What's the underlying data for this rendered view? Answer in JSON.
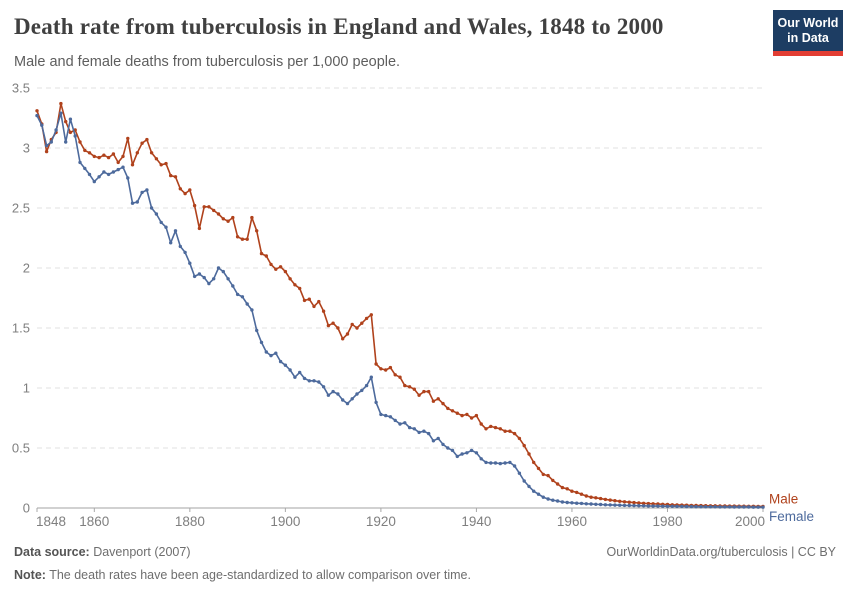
{
  "header": {
    "title": "Death rate from tuberculosis in England and Wales, 1848 to 2000",
    "subtitle": "Male and female deaths from tuberculosis per 1,000 people.",
    "logo": {
      "line1": "Our World",
      "line2": "in Data",
      "bg": "#1d3d63",
      "stripe": "#e23d33"
    }
  },
  "chart_data": {
    "type": "line",
    "title": "Death rate from tuberculosis in England and Wales, 1848 to 2000",
    "subtitle": "Male and female deaths from tuberculosis per 1,000 people.",
    "xlabel": "",
    "ylabel": "",
    "year_start": 1848,
    "year_end": 2000,
    "x_step_years": 1,
    "ylim": [
      0,
      3.5
    ],
    "yticks": [
      0,
      0.5,
      1,
      1.5,
      2,
      2.5,
      3,
      3.5
    ],
    "xticks": [
      1848,
      1860,
      1880,
      1900,
      1920,
      1940,
      1960,
      1980,
      2000
    ],
    "grid": true,
    "grid_style": "dashed",
    "legend_position": "right-end-labels",
    "series": [
      {
        "name": "Male",
        "color": "#b0421c",
        "values": [
          3.31,
          3.2,
          2.97,
          3.07,
          3.13,
          3.37,
          3.22,
          3.13,
          3.15,
          3.05,
          2.98,
          2.96,
          2.93,
          2.92,
          2.94,
          2.92,
          2.95,
          2.88,
          2.93,
          3.08,
          2.86,
          2.96,
          3.04,
          3.07,
          2.96,
          2.91,
          2.86,
          2.87,
          2.77,
          2.76,
          2.66,
          2.62,
          2.65,
          2.52,
          2.33,
          2.51,
          2.51,
          2.48,
          2.45,
          2.41,
          2.39,
          2.42,
          2.26,
          2.24,
          2.24,
          2.42,
          2.31,
          2.12,
          2.1,
          2.03,
          1.99,
          2.01,
          1.97,
          1.91,
          1.86,
          1.83,
          1.73,
          1.74,
          1.68,
          1.72,
          1.64,
          1.52,
          1.54,
          1.5,
          1.41,
          1.45,
          1.53,
          1.5,
          1.54,
          1.58,
          1.61,
          1.2,
          1.16,
          1.15,
          1.17,
          1.11,
          1.09,
          1.02,
          1.01,
          0.99,
          0.94,
          0.97,
          0.97,
          0.89,
          0.91,
          0.87,
          0.83,
          0.81,
          0.79,
          0.77,
          0.78,
          0.75,
          0.77,
          0.7,
          0.66,
          0.68,
          0.67,
          0.66,
          0.64,
          0.64,
          0.62,
          0.58,
          0.52,
          0.45,
          0.38,
          0.33,
          0.28,
          0.27,
          0.23,
          0.2,
          0.17,
          0.16,
          0.14,
          0.13,
          0.115,
          0.1,
          0.09,
          0.085,
          0.078,
          0.072,
          0.066,
          0.061,
          0.056,
          0.052,
          0.048,
          0.045,
          0.042,
          0.039,
          0.037,
          0.035,
          0.033,
          0.031,
          0.029,
          0.027,
          0.026,
          0.024,
          0.023,
          0.022,
          0.021,
          0.02,
          0.019,
          0.018,
          0.018,
          0.017,
          0.017,
          0.016,
          0.016,
          0.015,
          0.015,
          0.014,
          0.014,
          0.013,
          0.013
        ]
      },
      {
        "name": "Female",
        "color": "#4d6a9c",
        "values": [
          3.27,
          3.19,
          3.02,
          3.05,
          3.15,
          3.29,
          3.05,
          3.24,
          3.1,
          2.88,
          2.83,
          2.78,
          2.72,
          2.76,
          2.8,
          2.78,
          2.8,
          2.82,
          2.84,
          2.75,
          2.54,
          2.55,
          2.63,
          2.65,
          2.5,
          2.45,
          2.38,
          2.34,
          2.21,
          2.31,
          2.18,
          2.13,
          2.04,
          1.93,
          1.95,
          1.92,
          1.87,
          1.91,
          2.0,
          1.97,
          1.91,
          1.85,
          1.78,
          1.76,
          1.7,
          1.65,
          1.48,
          1.38,
          1.3,
          1.27,
          1.29,
          1.22,
          1.19,
          1.15,
          1.09,
          1.13,
          1.08,
          1.06,
          1.06,
          1.05,
          1.01,
          0.94,
          0.97,
          0.95,
          0.9,
          0.87,
          0.91,
          0.95,
          0.98,
          1.02,
          1.09,
          0.88,
          0.78,
          0.77,
          0.76,
          0.73,
          0.7,
          0.71,
          0.67,
          0.66,
          0.63,
          0.64,
          0.62,
          0.56,
          0.58,
          0.53,
          0.5,
          0.48,
          0.43,
          0.45,
          0.46,
          0.48,
          0.46,
          0.41,
          0.38,
          0.375,
          0.375,
          0.37,
          0.375,
          0.38,
          0.35,
          0.29,
          0.225,
          0.18,
          0.14,
          0.115,
          0.09,
          0.075,
          0.065,
          0.058,
          0.05,
          0.046,
          0.043,
          0.04,
          0.038,
          0.035,
          0.033,
          0.031,
          0.029,
          0.027,
          0.026,
          0.024,
          0.023,
          0.022,
          0.021,
          0.02,
          0.019,
          0.018,
          0.017,
          0.016,
          0.016,
          0.015,
          0.014,
          0.014,
          0.013,
          0.013,
          0.012,
          0.012,
          0.011,
          0.011,
          0.01,
          0.01,
          0.01,
          0.009,
          0.009,
          0.009,
          0.008,
          0.008,
          0.008,
          0.008,
          0.007,
          0.007,
          0.007
        ]
      }
    ]
  },
  "footer": {
    "data_source_label": "Data source:",
    "data_source_value": " Davenport (2007)",
    "link": "OurWorldinData.org/tuberculosis | CC BY",
    "note_label": "Note:",
    "note_value": " The death rates have been age-standardized to allow comparison over time."
  }
}
